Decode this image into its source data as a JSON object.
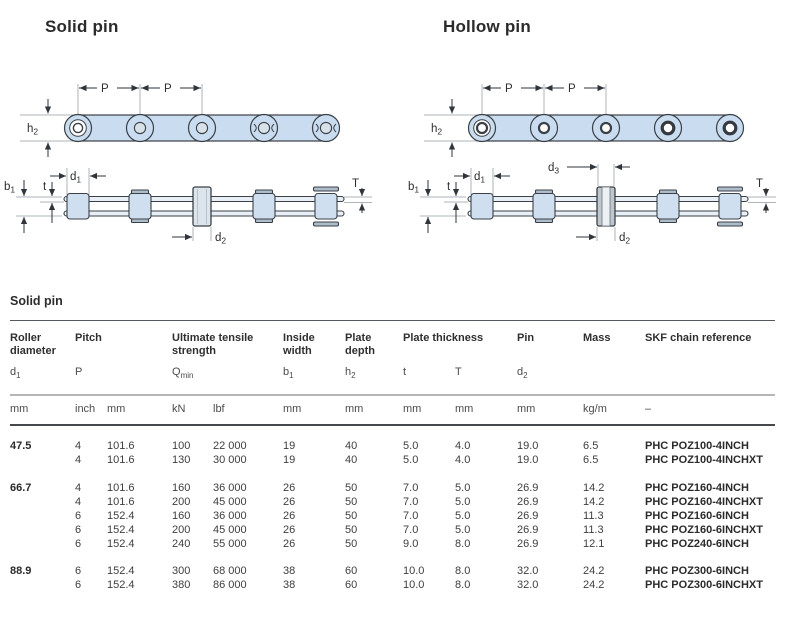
{
  "colors": {
    "chain_fill": "#c9dcf0",
    "chain_stroke": "#3a4046",
    "plate_fill": "#e9eff6",
    "roller_fill": "#cfdfef",
    "cap_fill": "#aebdcb",
    "pin_fill_solid": "#dde5ec",
    "pin_fill_hollow": "#bfc7ce",
    "dim_text": "#2d2d2d"
  },
  "diagrams": {
    "solid": {
      "title": "Solid pin",
      "dims": {
        "p": "P",
        "h2b": "h",
        "h2s": "2",
        "d1b": "d",
        "d1s": "1",
        "b1b": "b",
        "b1s": "1",
        "t": "t",
        "T": "T",
        "d2b": "d",
        "d2s": "2"
      }
    },
    "hollow": {
      "title": "Hollow pin",
      "dims": {
        "p": "P",
        "h2b": "h",
        "h2s": "2",
        "d1b": "d",
        "d1s": "1",
        "b1b": "b",
        "b1s": "1",
        "t": "t",
        "T": "T",
        "d2b": "d",
        "d2s": "2",
        "d3b": "d",
        "d3s": "3"
      }
    }
  },
  "table": {
    "section_title": "Solid pin",
    "headers": {
      "roller_diameter": "Roller diameter",
      "pitch": "Pitch",
      "tensile": "Ultimate tensile strength",
      "inside_width": "Inside width",
      "plate_depth": "Plate depth",
      "plate_thickness": "Plate thickness",
      "pin": "Pin",
      "mass": "Mass",
      "reference": "SKF chain reference"
    },
    "symbols": {
      "d1b": "d",
      "d1s": "1",
      "p": "P",
      "qb": "Q",
      "qs": "min",
      "b1b": "b",
      "b1s": "1",
      "h2b": "h",
      "h2s": "2",
      "t": "t",
      "T": "T",
      "d2b": "d",
      "d2s": "2"
    },
    "units": {
      "d1": "mm",
      "pitch_inch": "inch",
      "pitch_mm": "mm",
      "kn": "kN",
      "lbf": "lbf",
      "b1": "mm",
      "h2": "mm",
      "t": "mm",
      "T": "mm",
      "d2": "mm",
      "mass": "kg/m",
      "ref": "–"
    },
    "cell_names": [
      "cell-pitch-inch",
      "cell-pitch-mm",
      "cell-strength-kn",
      "cell-strength-lbf",
      "cell-inside-width",
      "cell-plate-depth",
      "cell-thickness-t",
      "cell-thickness-T",
      "cell-pin-d2",
      "cell-mass",
      "cell-skf-reference"
    ],
    "groups": [
      {
        "roller_diameter": "47.5",
        "rows": [
          [
            "4",
            "101.6",
            "100",
            "22 000",
            "19",
            "40",
            "5.0",
            "4.0",
            "19.0",
            "6.5",
            "PHC POZ100-4INCH"
          ],
          [
            "4",
            "101.6",
            "130",
            "30 000",
            "19",
            "40",
            "5.0",
            "4.0",
            "19.0",
            "6.5",
            "PHC POZ100-4INCHXT"
          ]
        ]
      },
      {
        "roller_diameter": "66.7",
        "rows": [
          [
            "4",
            "101.6",
            "160",
            "36 000",
            "26",
            "50",
            "7.0",
            "5.0",
            "26.9",
            "14.2",
            "PHC POZ160-4INCH"
          ],
          [
            "4",
            "101.6",
            "200",
            "45 000",
            "26",
            "50",
            "7.0",
            "5.0",
            "26.9",
            "14.2",
            "PHC POZ160-4INCHXT"
          ],
          [
            "6",
            "152.4",
            "160",
            "36 000",
            "26",
            "50",
            "7.0",
            "5.0",
            "26.9",
            "11.3",
            "PHC POZ160-6INCH"
          ],
          [
            "6",
            "152.4",
            "200",
            "45 000",
            "26",
            "50",
            "7.0",
            "5.0",
            "26.9",
            "11.3",
            "PHC POZ160-6INCHXT"
          ],
          [
            "6",
            "152.4",
            "240",
            "55 000",
            "26",
            "50",
            "9.0",
            "8.0",
            "26.9",
            "12.1",
            "PHC POZ240-6INCH"
          ]
        ]
      },
      {
        "roller_diameter": "88.9",
        "rows": [
          [
            "6",
            "152.4",
            "300",
            "68 000",
            "38",
            "60",
            "10.0",
            "8.0",
            "32.0",
            "24.2",
            "PHC POZ300-6INCH"
          ],
          [
            "6",
            "152.4",
            "380",
            "86 000",
            "38",
            "60",
            "10.0",
            "8.0",
            "32.0",
            "24.2",
            "PHC POZ300-6INCHXT"
          ]
        ]
      }
    ]
  }
}
